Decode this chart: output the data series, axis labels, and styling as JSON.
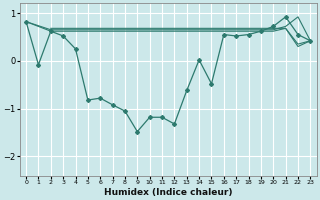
{
  "xlabel": "Humidex (Indice chaleur)",
  "bg_color": "#cce8ea",
  "grid_color": "#ffffff",
  "line_color": "#2d7a6e",
  "xlim": [
    -0.5,
    23.5
  ],
  "ylim": [
    -2.4,
    1.2
  ],
  "yticks": [
    -2,
    -1,
    0,
    1
  ],
  "xticks": [
    0,
    1,
    2,
    3,
    4,
    5,
    6,
    7,
    8,
    9,
    10,
    11,
    12,
    13,
    14,
    15,
    16,
    17,
    18,
    19,
    20,
    21,
    22,
    23
  ],
  "main_x": [
    0,
    1,
    2,
    3,
    4,
    5,
    6,
    7,
    8,
    9,
    10,
    11,
    12,
    13,
    14,
    15,
    16,
    17,
    18,
    19,
    20,
    21,
    22,
    23
  ],
  "main_y": [
    0.82,
    -0.08,
    0.62,
    0.52,
    0.25,
    -0.82,
    -0.78,
    -0.92,
    -1.05,
    -1.48,
    -1.18,
    -1.18,
    -1.32,
    -0.62,
    0.02,
    -0.48,
    0.55,
    0.52,
    0.55,
    0.62,
    0.72,
    0.92,
    0.55,
    0.42
  ],
  "flat1_x": [
    0,
    2,
    3,
    4,
    5,
    6,
    7,
    8,
    9,
    10,
    11,
    12,
    13,
    14,
    15,
    16,
    17,
    18,
    19,
    20,
    21,
    22,
    23
  ],
  "flat1_y": [
    0.82,
    0.62,
    0.62,
    0.62,
    0.62,
    0.62,
    0.62,
    0.62,
    0.62,
    0.62,
    0.62,
    0.62,
    0.62,
    0.62,
    0.62,
    0.62,
    0.62,
    0.62,
    0.62,
    0.62,
    0.68,
    0.3,
    0.42
  ],
  "flat2_x": [
    0,
    2,
    3,
    4,
    5,
    6,
    7,
    8,
    9,
    10,
    11,
    12,
    13,
    14,
    15,
    16,
    17,
    18,
    19,
    20,
    21,
    22,
    23
  ],
  "flat2_y": [
    0.82,
    0.65,
    0.65,
    0.65,
    0.65,
    0.65,
    0.65,
    0.65,
    0.65,
    0.65,
    0.65,
    0.65,
    0.65,
    0.65,
    0.65,
    0.65,
    0.65,
    0.65,
    0.65,
    0.65,
    0.72,
    0.92,
    0.42
  ],
  "flat3_x": [
    2,
    3,
    4,
    5,
    6,
    7,
    8,
    9,
    10,
    11,
    12,
    13,
    14,
    15,
    16,
    17,
    18,
    19,
    20,
    21,
    22,
    23
  ],
  "flat3_y": [
    0.68,
    0.68,
    0.68,
    0.68,
    0.68,
    0.68,
    0.68,
    0.68,
    0.68,
    0.68,
    0.68,
    0.68,
    0.68,
    0.68,
    0.68,
    0.68,
    0.68,
    0.68,
    0.68,
    0.68,
    0.35,
    0.42
  ]
}
